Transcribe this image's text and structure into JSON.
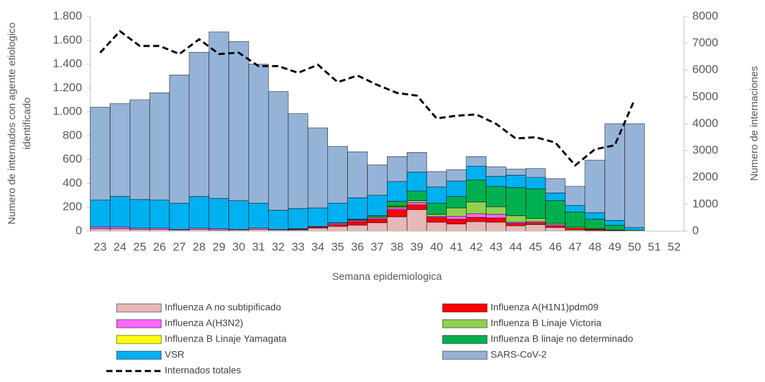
{
  "chart_data": {
    "type": "stacked_bar_line",
    "xlabel": "Semana epidemiologica",
    "ylabel": [
      "Numero de internados con agente etiologico",
      "identificado"
    ],
    "y2label": "Numero de internaciones",
    "categories": [
      "23",
      "24",
      "25",
      "26",
      "27",
      "28",
      "29",
      "30",
      "31",
      "32",
      "33",
      "34",
      "35",
      "36",
      "37",
      "38",
      "39",
      "40",
      "41",
      "42",
      "43",
      "44",
      "45",
      "46",
      "47",
      "48",
      "49",
      "50",
      "51",
      "52"
    ],
    "ylim": [
      0,
      1800
    ],
    "yticks": [
      0,
      200,
      400,
      600,
      800,
      {
        "value": 1000,
        "label": "1.000"
      },
      {
        "value": 1200,
        "label": "1.200"
      },
      {
        "value": 1400,
        "label": "1.400"
      },
      {
        "value": 1600,
        "label": "1.600"
      },
      {
        "value": 1800,
        "label": "1.800"
      }
    ],
    "y2lim": [
      0,
      8000
    ],
    "y2ticks": [
      0,
      1000,
      2000,
      3000,
      4000,
      5000,
      6000,
      7000,
      8000
    ],
    "series": [
      {
        "name": "Influenza A no subtipificado",
        "color": "#e6b8b7",
        "values": [
          20,
          20,
          15,
          15,
          10,
          15,
          10,
          10,
          15,
          10,
          10,
          25,
          40,
          50,
          70,
          120,
          180,
          75,
          60,
          80,
          75,
          45,
          55,
          30,
          10,
          5,
          5,
          0,
          null,
          null
        ]
      },
      {
        "name": "Influenza A(H1N1)pdm09",
        "color": "#ff0000",
        "values": [
          0,
          0,
          0,
          0,
          0,
          0,
          0,
          0,
          0,
          0,
          5,
          10,
          15,
          30,
          30,
          60,
          40,
          40,
          40,
          35,
          35,
          20,
          15,
          15,
          15,
          10,
          5,
          0,
          null,
          null
        ]
      },
      {
        "name": "Influenza A(H3N2)",
        "color": "#ff66ff",
        "values": [
          15,
          15,
          10,
          10,
          5,
          10,
          10,
          5,
          10,
          5,
          5,
          5,
          10,
          10,
          10,
          15,
          20,
          10,
          25,
          30,
          30,
          10,
          10,
          10,
          0,
          0,
          0,
          0,
          null,
          null
        ]
      },
      {
        "name": "Influenza B Linaje Victoria",
        "color": "#92d050",
        "values": [
          0,
          0,
          0,
          0,
          0,
          0,
          0,
          0,
          0,
          0,
          0,
          0,
          0,
          5,
          10,
          10,
          15,
          15,
          70,
          100,
          65,
          55,
          25,
          10,
          10,
          5,
          0,
          0,
          null,
          null
        ]
      },
      {
        "name": "Influenza B Linaje Yamagata",
        "color": "#ffff00",
        "values": [
          0,
          0,
          0,
          0,
          0,
          0,
          0,
          0,
          0,
          0,
          0,
          0,
          0,
          0,
          0,
          5,
          0,
          0,
          0,
          0,
          0,
          0,
          0,
          0,
          0,
          0,
          0,
          0,
          null,
          null
        ]
      },
      {
        "name": "Influenza B linaje no determinado",
        "color": "#00b050",
        "values": [
          0,
          0,
          0,
          0,
          0,
          0,
          0,
          0,
          0,
          0,
          0,
          0,
          5,
          5,
          10,
          40,
          80,
          95,
          95,
          185,
          170,
          235,
          250,
          190,
          125,
          80,
          40,
          10,
          null,
          null
        ]
      },
      {
        "name": "VSR",
        "color": "#00b0f0",
        "values": [
          225,
          255,
          240,
          235,
          220,
          265,
          255,
          240,
          210,
          160,
          170,
          155,
          165,
          180,
          170,
          165,
          160,
          135,
          130,
          115,
          85,
          105,
          95,
          65,
          55,
          55,
          40,
          20,
          null,
          null
        ]
      },
      {
        "name": "SARS-CoV-2",
        "color": "#95b3d7",
        "values": [
          780,
          780,
          835,
          900,
          1075,
          1210,
          1395,
          1335,
          1165,
          995,
          795,
          670,
          475,
          385,
          255,
          210,
          165,
          130,
          95,
          80,
          80,
          50,
          75,
          120,
          160,
          440,
          810,
          870,
          null,
          null
        ]
      },
      {
        "name": "Internados totales",
        "color": "#000000",
        "axis": "y2",
        "values": [
          6650,
          7450,
          6900,
          6900,
          6600,
          7150,
          6600,
          6650,
          6150,
          6150,
          5900,
          6200,
          5550,
          5800,
          5450,
          5150,
          5050,
          4200,
          4300,
          4350,
          4000,
          3450,
          3500,
          3300,
          2450,
          3050,
          3200,
          4900,
          null,
          null
        ]
      }
    ]
  }
}
